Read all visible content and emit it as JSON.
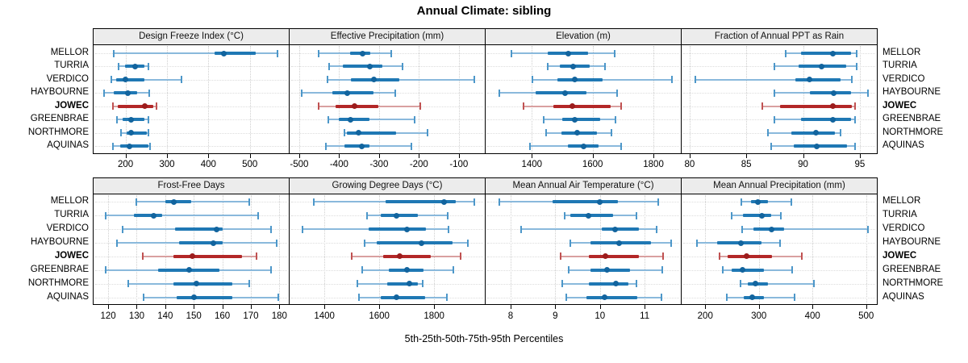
{
  "title": "Annual Climate: sibling",
  "caption": "5th-25th-50th-75th-95th Percentiles",
  "sites": [
    "MELLOR",
    "TURRIA",
    "VERDICO",
    "HAYBOURNE",
    "JOWEC",
    "GREENBRAE",
    "NORTHMORE",
    "AQUINAS"
  ],
  "highlight_site": "JOWEC",
  "percentile_labels": [
    "5th",
    "25th",
    "50th",
    "75th",
    "95th"
  ],
  "colors": {
    "blue_line": "#8ab9dc",
    "blue_bar": "#1f78b4",
    "blue_dot": "#12649e",
    "blue_tick": "#4d97c9",
    "red_line": "#d9a0a0",
    "red_bar": "#b32727",
    "red_dot": "#9c1c1c",
    "red_tick": "#c05252",
    "grid": "#cfcfcf",
    "guide": "#dcdcdc",
    "strip_bg": "#ececec",
    "border": "#000000"
  },
  "chart_data": [
    {
      "type": "dotplot-percentiles",
      "row": 0,
      "col": 0,
      "title": "Design Freeze Index (°C)",
      "axis": {
        "min": 123,
        "max": 594,
        "ticks": [
          200,
          300,
          400,
          500
        ]
      },
      "series": [
        {
          "name": "MELLOR",
          "values": [
            171,
            414,
            437,
            515,
            566
          ]
        },
        {
          "name": "TURRIA",
          "values": [
            184,
            199,
            223,
            245,
            255
          ]
        },
        {
          "name": "VERDICO",
          "values": [
            165,
            177,
            200,
            245,
            336
          ]
        },
        {
          "name": "HAYBOURNE",
          "values": [
            148,
            171,
            205,
            229,
            258
          ]
        },
        {
          "name": "JOWEC",
          "values": [
            170,
            182,
            246,
            268,
            275
          ]
        },
        {
          "name": "GREENBRAE",
          "values": [
            179,
            194,
            213,
            246,
            256
          ]
        },
        {
          "name": "NORTHMORE",
          "values": [
            190,
            203,
            214,
            252,
            255
          ]
        },
        {
          "name": "AQUINAS",
          "values": [
            169,
            187,
            210,
            255,
            260
          ]
        }
      ]
    },
    {
      "type": "dotplot-percentiles",
      "row": 0,
      "col": 1,
      "title": "Effective Precipitation (mm)",
      "axis": {
        "min": -524,
        "max": -35,
        "ticks": [
          -500,
          -400,
          -300,
          -200,
          -100
        ]
      },
      "series": [
        {
          "name": "MELLOR",
          "values": [
            -451,
            -373,
            -342,
            -322,
            -270
          ]
        },
        {
          "name": "TURRIA",
          "values": [
            -425,
            -390,
            -323,
            -291,
            -241
          ]
        },
        {
          "name": "VERDICO",
          "values": [
            -430,
            -370,
            -312,
            -250,
            -62
          ]
        },
        {
          "name": "HAYBOURNE",
          "values": [
            -493,
            -417,
            -380,
            -313,
            -260
          ]
        },
        {
          "name": "JOWEC",
          "values": [
            -451,
            -408,
            -361,
            -302,
            -197
          ]
        },
        {
          "name": "GREENBRAE",
          "values": [
            -428,
            -400,
            -371,
            -323,
            -211
          ]
        },
        {
          "name": "NORTHMORE",
          "values": [
            -387,
            -380,
            -351,
            -257,
            -178
          ]
        },
        {
          "name": "AQUINAS",
          "values": [
            -433,
            -387,
            -343,
            -323,
            -218
          ]
        }
      ]
    },
    {
      "type": "dotplot-percentiles",
      "row": 0,
      "col": 2,
      "title": "Elevation (m)",
      "axis": {
        "min": 1248,
        "max": 1890,
        "ticks": [
          1400,
          1600,
          1800
        ]
      },
      "series": [
        {
          "name": "MELLOR",
          "values": [
            1334,
            1453,
            1520,
            1585,
            1672
          ]
        },
        {
          "name": "TURRIA",
          "values": [
            1453,
            1492,
            1536,
            1589,
            1640
          ]
        },
        {
          "name": "VERDICO",
          "values": [
            1403,
            1483,
            1541,
            1633,
            1860
          ]
        },
        {
          "name": "HAYBOURNE",
          "values": [
            1292,
            1413,
            1510,
            1580,
            1681
          ]
        },
        {
          "name": "JOWEC",
          "values": [
            1374,
            1470,
            1532,
            1660,
            1694
          ]
        },
        {
          "name": "GREENBRAE",
          "values": [
            1438,
            1501,
            1541,
            1624,
            1674
          ]
        },
        {
          "name": "NORTHMORE",
          "values": [
            1448,
            1497,
            1549,
            1615,
            1662
          ]
        },
        {
          "name": "AQUINAS",
          "values": [
            1394,
            1519,
            1570,
            1620,
            1693
          ]
        }
      ]
    },
    {
      "type": "dotplot-percentiles",
      "row": 0,
      "col": 3,
      "title": "Fraction of Annual PPT as Rain",
      "axis": {
        "min": 79.3,
        "max": 96.5,
        "ticks": [
          80,
          85,
          90,
          95
        ]
      },
      "series": [
        {
          "name": "MELLOR",
          "values": [
            88.5,
            89.8,
            92.6,
            94.2,
            94.7
          ]
        },
        {
          "name": "TURRIA",
          "values": [
            87.5,
            89.6,
            91.6,
            93.8,
            94.7
          ]
        },
        {
          "name": "VERDICO",
          "values": [
            80.5,
            89.3,
            90.6,
            93.3,
            94.3
          ]
        },
        {
          "name": "HAYBOURNE",
          "values": [
            87.5,
            90.6,
            92.7,
            94.2,
            95.7
          ]
        },
        {
          "name": "JOWEC",
          "values": [
            86.4,
            88.0,
            92.6,
            94.3,
            94.6
          ]
        },
        {
          "name": "GREENBRAE",
          "values": [
            87.5,
            89.8,
            92.6,
            94.2,
            94.6
          ]
        },
        {
          "name": "NORTHMORE",
          "values": [
            86.9,
            89.0,
            91.1,
            92.8,
            93.3
          ]
        },
        {
          "name": "AQUINAS",
          "values": [
            87.2,
            89.2,
            91.2,
            93.9,
            94.6
          ]
        }
      ]
    },
    {
      "type": "dotplot-percentiles",
      "row": 1,
      "col": 0,
      "title": "Frost-Free Days",
      "axis": {
        "min": 114.9,
        "max": 183.3,
        "ticks": [
          120,
          130,
          140,
          150,
          160,
          170,
          180
        ]
      },
      "series": [
        {
          "name": "MELLOR",
          "values": [
            130,
            140,
            143,
            149,
            169.5
          ]
        },
        {
          "name": "TURRIA",
          "values": [
            119,
            129,
            136,
            139,
            172.5
          ]
        },
        {
          "name": "VERDICO",
          "values": [
            125,
            143.5,
            158,
            160,
            177
          ]
        },
        {
          "name": "HAYBOURNE",
          "values": [
            123,
            145,
            157,
            160,
            179
          ]
        },
        {
          "name": "JOWEC",
          "values": [
            132,
            143,
            149.5,
            167,
            172
          ]
        },
        {
          "name": "GREENBRAE",
          "values": [
            119,
            137.5,
            148.5,
            159,
            177
          ]
        },
        {
          "name": "NORTHMORE",
          "values": [
            127,
            143,
            151,
            163.5,
            169.5
          ]
        },
        {
          "name": "AQUINAS",
          "values": [
            132.5,
            144,
            150,
            163.5,
            179.5
          ]
        }
      ]
    },
    {
      "type": "dotplot-percentiles",
      "row": 1,
      "col": 1,
      "title": "Growing Degree Days (°C)",
      "axis": {
        "min": 1273,
        "max": 1985,
        "ticks": [
          1400,
          1600,
          1800
        ]
      },
      "series": [
        {
          "name": "MELLOR",
          "values": [
            1361,
            1622,
            1837,
            1878,
            1946
          ]
        },
        {
          "name": "TURRIA",
          "values": [
            1554,
            1605,
            1663,
            1742,
            1849
          ]
        },
        {
          "name": "VERDICO",
          "values": [
            1320,
            1561,
            1700,
            1771,
            1852
          ]
        },
        {
          "name": "HAYBOURNE",
          "values": [
            1546,
            1592,
            1754,
            1868,
            1922
          ]
        },
        {
          "name": "JOWEC",
          "values": [
            1500,
            1613,
            1675,
            1788,
            1898
          ]
        },
        {
          "name": "GREENBRAE",
          "values": [
            1537,
            1634,
            1702,
            1761,
            1870
          ]
        },
        {
          "name": "NORTHMORE",
          "values": [
            1519,
            1629,
            1710,
            1741,
            1759
          ]
        },
        {
          "name": "AQUINAS",
          "values": [
            1525,
            1605,
            1663,
            1766,
            1847
          ]
        }
      ]
    },
    {
      "type": "dotplot-percentiles",
      "row": 1,
      "col": 2,
      "title": "Mean Annual Air Temperature (°C)",
      "axis": {
        "min": 7.44,
        "max": 11.81,
        "ticks": [
          8,
          9,
          10,
          11
        ]
      },
      "series": [
        {
          "name": "MELLOR",
          "values": [
            7.74,
            8.94,
            10.0,
            10.41,
            11.31
          ]
        },
        {
          "name": "TURRIA",
          "values": [
            9.21,
            9.34,
            9.75,
            10.29,
            10.82
          ]
        },
        {
          "name": "VERDICO",
          "values": [
            8.23,
            10.04,
            10.34,
            10.87,
            11.27
          ]
        },
        {
          "name": "HAYBOURNE",
          "values": [
            9.33,
            9.78,
            10.43,
            11.15,
            11.59
          ]
        },
        {
          "name": "JOWEC",
          "values": [
            9.12,
            9.76,
            10.12,
            10.87,
            11.42
          ]
        },
        {
          "name": "GREENBRAE",
          "values": [
            9.3,
            9.79,
            10.15,
            10.67,
            11.39
          ]
        },
        {
          "name": "NORTHMORE",
          "values": [
            9.15,
            9.75,
            10.35,
            10.63,
            10.82
          ]
        },
        {
          "name": "AQUINAS",
          "values": [
            9.24,
            9.7,
            10.1,
            10.84,
            11.37
          ]
        }
      ]
    },
    {
      "type": "dotplot-percentiles",
      "row": 1,
      "col": 3,
      "title": "Mean Annual Precipitation (mm)",
      "axis": {
        "min": 156,
        "max": 520,
        "ticks": [
          200,
          300,
          400,
          500
        ]
      },
      "series": [
        {
          "name": "MELLOR",
          "values": [
            268,
            285,
            298,
            317,
            361
          ]
        },
        {
          "name": "TURRIA",
          "values": [
            249,
            270,
            305,
            323,
            341
          ]
        },
        {
          "name": "VERDICO",
          "values": [
            269,
            290,
            323,
            347,
            503
          ]
        },
        {
          "name": "HAYBOURNE",
          "values": [
            184,
            222,
            267,
            305,
            340
          ]
        },
        {
          "name": "JOWEC",
          "values": [
            227,
            241,
            277,
            325,
            380
          ]
        },
        {
          "name": "GREENBRAE",
          "values": [
            233,
            250,
            270,
            310,
            362
          ]
        },
        {
          "name": "NORTHMORE",
          "values": [
            266,
            280,
            294,
            317,
            402
          ]
        },
        {
          "name": "AQUINAS",
          "values": [
            240,
            272,
            288,
            310,
            367
          ]
        }
      ]
    }
  ]
}
